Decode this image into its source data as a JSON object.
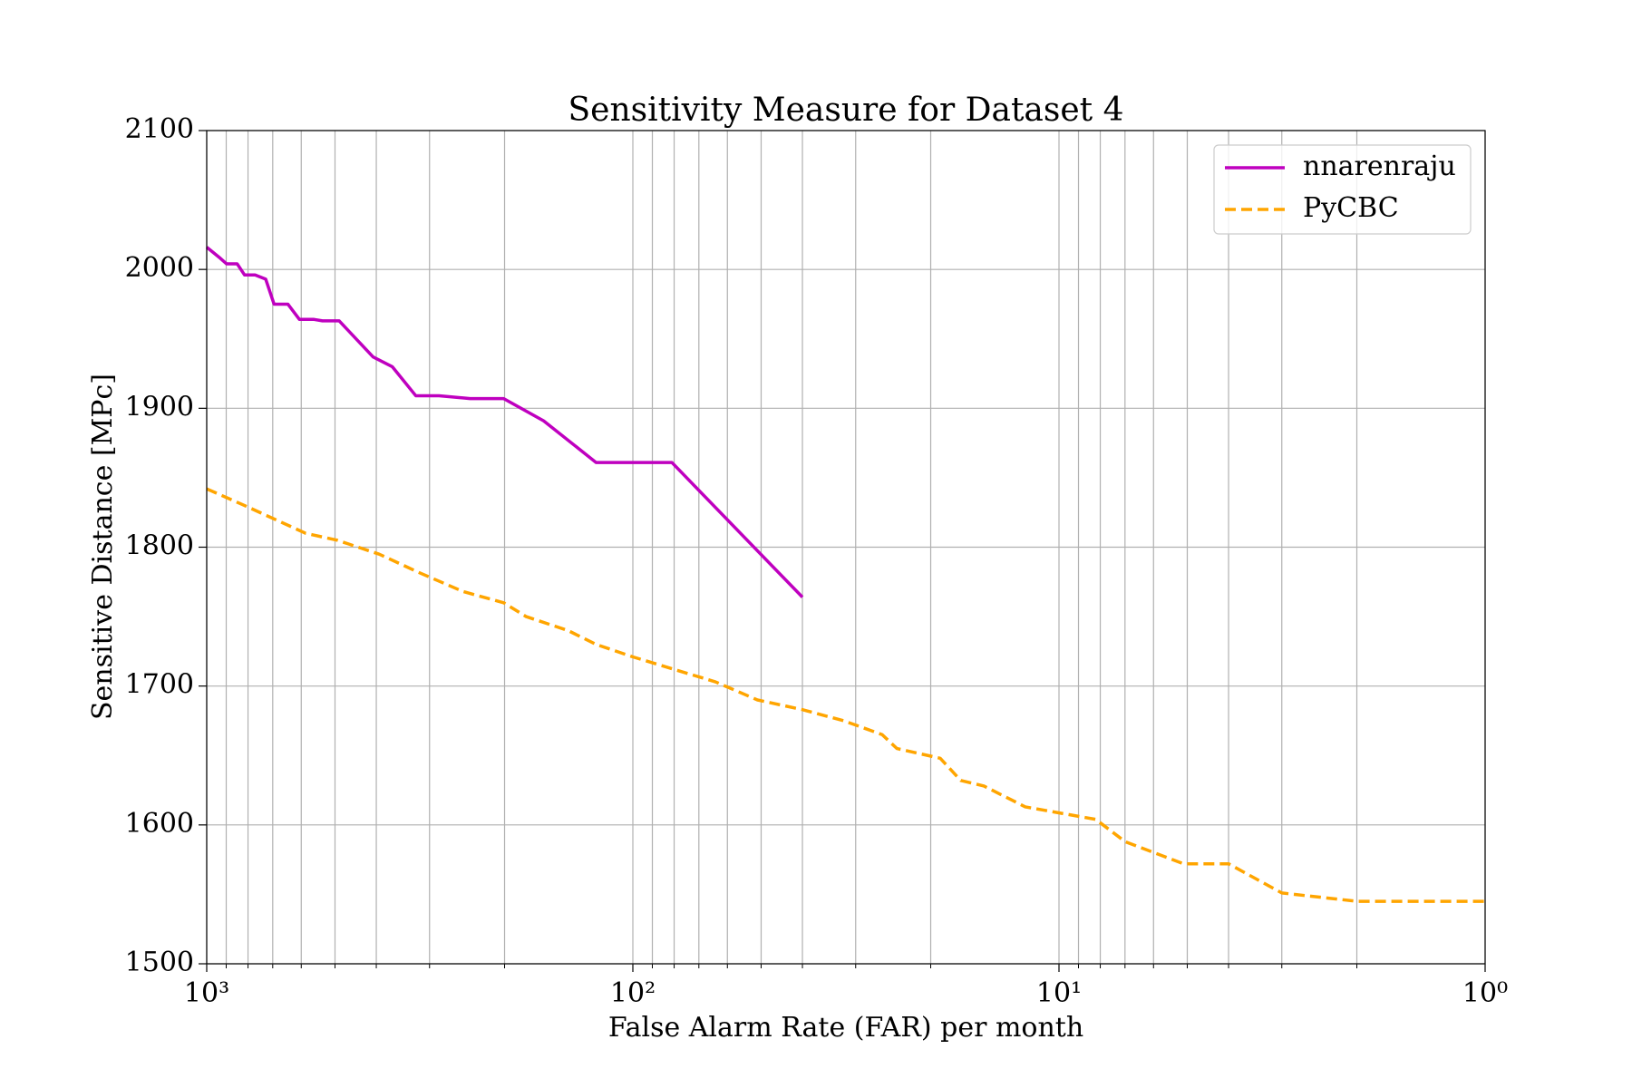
{
  "chart_data": {
    "type": "line",
    "title": "Sensitivity Measure for Dataset 4",
    "xlabel": "False Alarm Rate (FAR) per month",
    "ylabel": "Sensitive Distance [MPc]",
    "xscale": "log",
    "xlim": [
      1000,
      1
    ],
    "xticks": [
      {
        "value": 1000,
        "label": "10³"
      },
      {
        "value": 100,
        "label": "10²"
      },
      {
        "value": 10,
        "label": "10¹"
      },
      {
        "value": 1,
        "label": "10⁰"
      }
    ],
    "xminorticks": [
      900,
      800,
      700,
      600,
      500,
      400,
      300,
      200,
      90,
      80,
      70,
      60,
      50,
      40,
      30,
      20,
      9,
      8,
      7,
      6,
      5,
      4,
      3,
      2
    ],
    "ylim": [
      1500,
      2100
    ],
    "yticks": [
      1500,
      1600,
      1700,
      1800,
      1900,
      2000,
      2100
    ],
    "grid": true,
    "legend": "upper right",
    "series": [
      {
        "name": "nnarenraju",
        "color": "#bf00bf",
        "linestyle": "solid",
        "x": [
          1000,
          929,
          898,
          848,
          815,
          770,
          727,
          695,
          645,
          606,
          560,
          535,
          489,
          407,
          367,
          323,
          285,
          241,
          201,
          162,
          122,
          81,
          40
        ],
        "values": [
          2016,
          2008,
          2004,
          2004,
          1996,
          1996,
          1993,
          1975,
          1975,
          1964,
          1964,
          1963,
          1963,
          1937,
          1930,
          1909,
          1909,
          1907,
          1907,
          1891,
          1861,
          1861,
          1764
        ]
      },
      {
        "name": "PyCBC",
        "color": "#ffa500",
        "linestyle": "dashed",
        "x": [
          1000,
          815,
          586,
          494,
          394,
          319,
          250,
          201,
          178,
          142,
          122,
          100,
          80,
          64,
          51,
          40,
          32,
          26,
          24,
          19,
          17,
          15,
          12,
          8.2,
          7,
          5.1,
          4,
          3,
          2,
          1
        ],
        "values": [
          1842,
          1830,
          1810,
          1805,
          1795,
          1782,
          1768,
          1760,
          1750,
          1740,
          1730,
          1721,
          1712,
          1703,
          1690,
          1683,
          1675,
          1665,
          1655,
          1648,
          1632,
          1628,
          1613,
          1604,
          1588,
          1572,
          1572,
          1551,
          1545,
          1545
        ]
      }
    ]
  }
}
